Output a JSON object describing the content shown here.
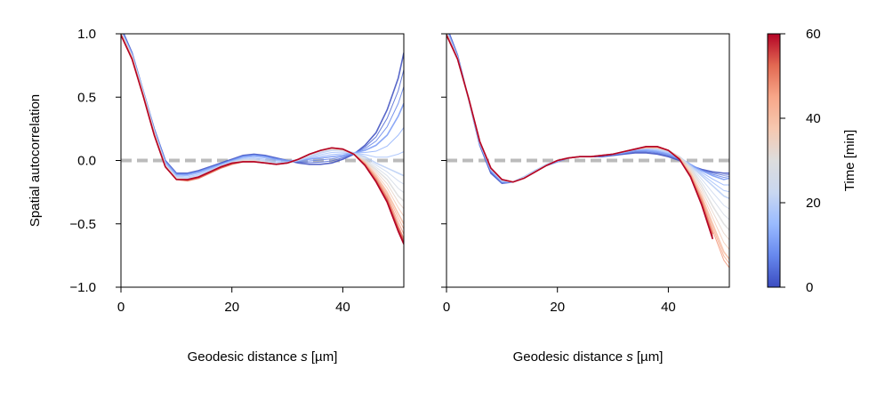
{
  "chart_data": [
    {
      "type": "line",
      "panel": "left",
      "xlabel_text": "Geodesic distance ",
      "xlabel_symbol": "s",
      "xlabel_unit": " [µm]",
      "ylabel": "Spatial autocorrelation",
      "xlim": [
        0,
        51
      ],
      "ylim": [
        -1.0,
        1.0
      ],
      "xticks": [
        0,
        20,
        40
      ],
      "yticks": [
        -1.0,
        -0.5,
        0.0,
        0.5,
        1.0
      ],
      "ytick_labels": [
        "−1.0",
        "−0.5",
        "0.0",
        "0.5",
        "1.0"
      ],
      "reference_line": {
        "y": 0,
        "color": "#bbbbbb",
        "style": "dashed"
      },
      "x": [
        0,
        2,
        4,
        6,
        8,
        10,
        12,
        14,
        16,
        18,
        20,
        22,
        24,
        26,
        28,
        30,
        32,
        34,
        36,
        38,
        40,
        42,
        44,
        46,
        48,
        50,
        51
      ],
      "series": [
        {
          "t": 0,
          "values": [
            1.05,
            0.85,
            0.55,
            0.25,
            0.0,
            -0.1,
            -0.1,
            -0.08,
            -0.05,
            -0.02,
            0.01,
            0.04,
            0.05,
            0.04,
            0.02,
            0.0,
            -0.02,
            -0.03,
            -0.03,
            -0.02,
            0.01,
            0.05,
            0.12,
            0.22,
            0.4,
            0.65,
            0.85
          ]
        },
        {
          "t": 10,
          "values": [
            1.03,
            0.84,
            0.55,
            0.24,
            -0.01,
            -0.11,
            -0.11,
            -0.09,
            -0.06,
            -0.03,
            0.0,
            0.03,
            0.04,
            0.03,
            0.01,
            0.0,
            0.0,
            0.01,
            0.02,
            0.03,
            0.04,
            0.06,
            0.08,
            0.12,
            0.2,
            0.35,
            0.45
          ]
        },
        {
          "t": 20,
          "values": [
            1.02,
            0.83,
            0.54,
            0.23,
            -0.03,
            -0.13,
            -0.14,
            -0.12,
            -0.08,
            -0.04,
            -0.01,
            0.01,
            0.01,
            0.0,
            -0.02,
            -0.02,
            0.0,
            0.03,
            0.06,
            0.08,
            0.08,
            0.06,
            0.03,
            -0.02,
            -0.06,
            -0.1,
            -0.12
          ]
        },
        {
          "t": 30,
          "values": [
            1.0,
            0.82,
            0.53,
            0.22,
            -0.04,
            -0.14,
            -0.15,
            -0.13,
            -0.09,
            -0.05,
            -0.02,
            0.0,
            0.0,
            -0.02,
            -0.03,
            -0.02,
            0.01,
            0.05,
            0.08,
            0.09,
            0.08,
            0.05,
            0.0,
            -0.07,
            -0.15,
            -0.28,
            -0.32
          ]
        },
        {
          "t": 40,
          "values": [
            1.0,
            0.81,
            0.52,
            0.21,
            -0.05,
            -0.15,
            -0.16,
            -0.14,
            -0.1,
            -0.06,
            -0.03,
            -0.01,
            -0.01,
            -0.02,
            -0.03,
            -0.02,
            0.01,
            0.05,
            0.08,
            0.1,
            0.09,
            0.05,
            -0.02,
            -0.12,
            -0.25,
            -0.42,
            -0.5
          ]
        },
        {
          "t": 50,
          "values": [
            0.99,
            0.8,
            0.51,
            0.2,
            -0.05,
            -0.15,
            -0.16,
            -0.14,
            -0.1,
            -0.06,
            -0.03,
            -0.01,
            -0.01,
            -0.02,
            -0.03,
            -0.02,
            0.01,
            0.05,
            0.08,
            0.1,
            0.09,
            0.05,
            -0.03,
            -0.15,
            -0.3,
            -0.52,
            -0.62
          ]
        },
        {
          "t": 60,
          "values": [
            0.99,
            0.8,
            0.51,
            0.2,
            -0.05,
            -0.15,
            -0.15,
            -0.13,
            -0.09,
            -0.05,
            -0.02,
            -0.01,
            -0.01,
            -0.02,
            -0.03,
            -0.02,
            0.01,
            0.05,
            0.08,
            0.1,
            0.09,
            0.05,
            -0.04,
            -0.17,
            -0.33,
            -0.56,
            -0.66
          ]
        }
      ]
    },
    {
      "type": "line",
      "panel": "right",
      "xlabel_text": "Geodesic distance ",
      "xlabel_symbol": "s",
      "xlabel_unit": " [µm]",
      "xlim": [
        0,
        51
      ],
      "ylim": [
        -1.0,
        1.0
      ],
      "xticks": [
        0,
        20,
        40
      ],
      "yticks": [
        -1.0,
        -0.5,
        0.0,
        0.5,
        1.0
      ],
      "reference_line": {
        "y": 0,
        "color": "#bbbbbb",
        "style": "dashed"
      },
      "x": [
        0,
        2,
        4,
        6,
        8,
        10,
        12,
        14,
        16,
        18,
        20,
        22,
        24,
        26,
        28,
        30,
        32,
        34,
        36,
        38,
        40,
        42,
        44,
        46,
        48,
        50,
        51
      ],
      "series": [
        {
          "t": 0,
          "values": [
            1.06,
            0.83,
            0.48,
            0.12,
            -0.1,
            -0.18,
            -0.17,
            -0.13,
            -0.08,
            -0.04,
            -0.01,
            0.02,
            0.03,
            0.03,
            0.03,
            0.04,
            0.05,
            0.06,
            0.06,
            0.05,
            0.03,
            0.0,
            -0.04,
            -0.07,
            -0.09,
            -0.1,
            -0.1
          ]
        },
        {
          "t": 10,
          "values": [
            1.04,
            0.82,
            0.48,
            0.13,
            -0.08,
            -0.17,
            -0.17,
            -0.13,
            -0.08,
            -0.04,
            -0.01,
            0.02,
            0.03,
            0.03,
            0.04,
            0.05,
            0.06,
            0.08,
            0.08,
            0.07,
            0.05,
            0.02,
            -0.03,
            -0.08,
            -0.12,
            -0.15,
            -0.14
          ]
        },
        {
          "t": 20,
          "values": [
            1.02,
            0.81,
            0.48,
            0.14,
            -0.07,
            -0.16,
            -0.17,
            -0.13,
            -0.08,
            -0.03,
            0.0,
            0.02,
            0.03,
            0.03,
            0.04,
            0.05,
            0.07,
            0.09,
            0.1,
            0.09,
            0.07,
            0.03,
            -0.04,
            -0.12,
            -0.2,
            -0.28,
            -0.3
          ]
        },
        {
          "t": 30,
          "values": [
            1.0,
            0.8,
            0.48,
            0.15,
            -0.06,
            -0.15,
            -0.17,
            -0.14,
            -0.09,
            -0.04,
            0.0,
            0.02,
            0.03,
            0.03,
            0.04,
            0.05,
            0.07,
            0.09,
            0.1,
            0.1,
            0.08,
            0.03,
            -0.06,
            -0.2,
            -0.36,
            -0.5,
            -0.55
          ]
        },
        {
          "t": 40,
          "values": [
            1.0,
            0.8,
            0.49,
            0.15,
            -0.06,
            -0.15,
            -0.17,
            -0.14,
            -0.09,
            -0.04,
            0.0,
            0.02,
            0.03,
            0.03,
            0.04,
            0.05,
            0.07,
            0.09,
            0.1,
            0.1,
            0.08,
            0.02,
            -0.1,
            -0.28,
            -0.5,
            -0.72,
            -0.78
          ]
        },
        {
          "t": 50,
          "values": [
            0.99,
            0.8,
            0.49,
            0.15,
            -0.06,
            -0.15,
            -0.17,
            -0.14,
            -0.09,
            -0.04,
            0.0,
            0.02,
            0.03,
            0.03,
            0.04,
            0.05,
            0.07,
            0.09,
            0.11,
            0.11,
            0.08,
            0.01,
            -0.12,
            -0.32,
            -0.58,
            -0.82,
            -0.88
          ]
        },
        {
          "t": 60,
          "values": [
            0.99,
            0.8,
            0.49,
            0.15,
            -0.06,
            -0.15,
            -0.17,
            -0.14,
            -0.09,
            -0.04,
            0.0,
            0.02,
            0.03,
            0.03,
            0.04,
            0.05,
            0.07,
            0.09,
            0.11,
            0.11,
            0.08,
            0.01,
            -0.13,
            -0.35,
            -0.62,
            null,
            null
          ]
        }
      ]
    }
  ],
  "colorbar": {
    "label": "Time [min]",
    "range": [
      0,
      60
    ],
    "ticks": [
      0,
      20,
      40,
      60
    ],
    "colormap": "coolwarm",
    "colors": [
      "#3b4cc0",
      "#6788ee",
      "#9abbff",
      "#c9d7f0",
      "#dddddd",
      "#f6c8b0",
      "#f7a789",
      "#e26952",
      "#b40426"
    ]
  }
}
